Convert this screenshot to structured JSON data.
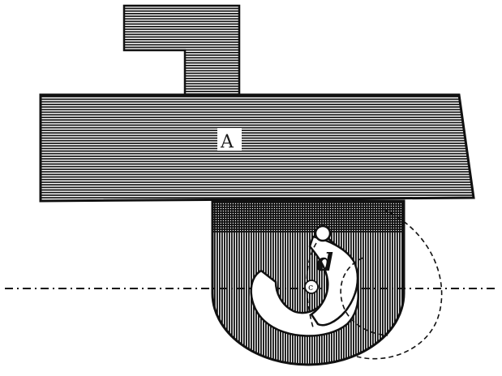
{
  "figure": {
    "labels": {
      "block": "A",
      "cam": "d",
      "pivot": "c"
    },
    "colors": {
      "ink": "#111111",
      "paper": "#ffffff"
    }
  }
}
